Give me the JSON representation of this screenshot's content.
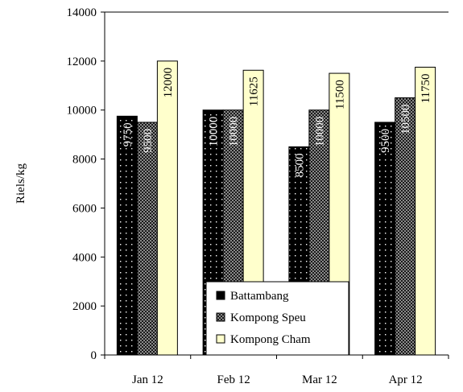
{
  "chart_data": {
    "type": "bar",
    "categories": [
      "Jan 12",
      "Feb 12",
      "Mar 12",
      "Apr 12"
    ],
    "series": [
      {
        "name": "Battambang",
        "values": [
          9750,
          10000,
          8500,
          9500
        ],
        "color": "#000000",
        "pattern": "dots-on-black"
      },
      {
        "name": "Kompong Speu",
        "values": [
          9500,
          10000,
          10000,
          10500
        ],
        "color": "#333333",
        "pattern": "checker"
      },
      {
        "name": "Kompong Cham",
        "values": [
          12000,
          11625,
          11500,
          11750
        ],
        "color": "#ffffcc",
        "pattern": "solid"
      }
    ],
    "data_labels": [
      [
        "9750",
        "10000",
        "8500",
        "9500"
      ],
      [
        "9500",
        "10000",
        "10000",
        "10500"
      ],
      [
        "12000",
        "11625",
        "11500",
        "11750"
      ]
    ],
    "title": "",
    "xlabel": "",
    "ylabel": "Riels/kg",
    "ylim": [
      0,
      14000
    ],
    "yticks": [
      0,
      2000,
      4000,
      6000,
      8000,
      10000,
      12000,
      14000
    ],
    "ytick_labels": [
      "0",
      "2000",
      "4000",
      "6000",
      "8000",
      "10000",
      "12000",
      "14000"
    ],
    "grid": false,
    "legend_position": "bottom-center"
  }
}
